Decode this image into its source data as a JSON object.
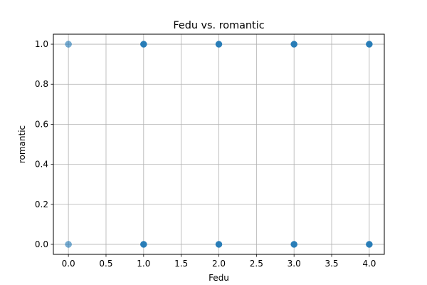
{
  "chart_data": {
    "type": "scatter",
    "title": "Fedu vs. romantic",
    "xlabel": "Fedu",
    "ylabel": "romantic",
    "xlim": [
      -0.2,
      4.2
    ],
    "ylim": [
      -0.05,
      1.05
    ],
    "xticks": [
      0.0,
      0.5,
      1.0,
      1.5,
      2.0,
      2.5,
      3.0,
      3.5,
      4.0
    ],
    "xtick_labels": [
      "0.0",
      "0.5",
      "1.0",
      "1.5",
      "2.0",
      "2.5",
      "3.0",
      "3.5",
      "4.0"
    ],
    "yticks": [
      0.0,
      0.2,
      0.4,
      0.6,
      0.8,
      1.0
    ],
    "ytick_labels": [
      "0.0",
      "0.2",
      "0.4",
      "0.6",
      "0.8",
      "1.0"
    ],
    "grid": true,
    "marker_color": "#1f77b4",
    "points": [
      {
        "x": 0,
        "y": 1,
        "density": "light"
      },
      {
        "x": 0,
        "y": 0,
        "density": "light"
      },
      {
        "x": 1,
        "y": 1,
        "density": "dense"
      },
      {
        "x": 1,
        "y": 0,
        "density": "dense"
      },
      {
        "x": 2,
        "y": 1,
        "density": "dense"
      },
      {
        "x": 2,
        "y": 0,
        "density": "dense"
      },
      {
        "x": 3,
        "y": 1,
        "density": "dense"
      },
      {
        "x": 3,
        "y": 0,
        "density": "dense"
      },
      {
        "x": 4,
        "y": 1,
        "density": "dense"
      },
      {
        "x": 4,
        "y": 0,
        "density": "dense"
      }
    ]
  }
}
